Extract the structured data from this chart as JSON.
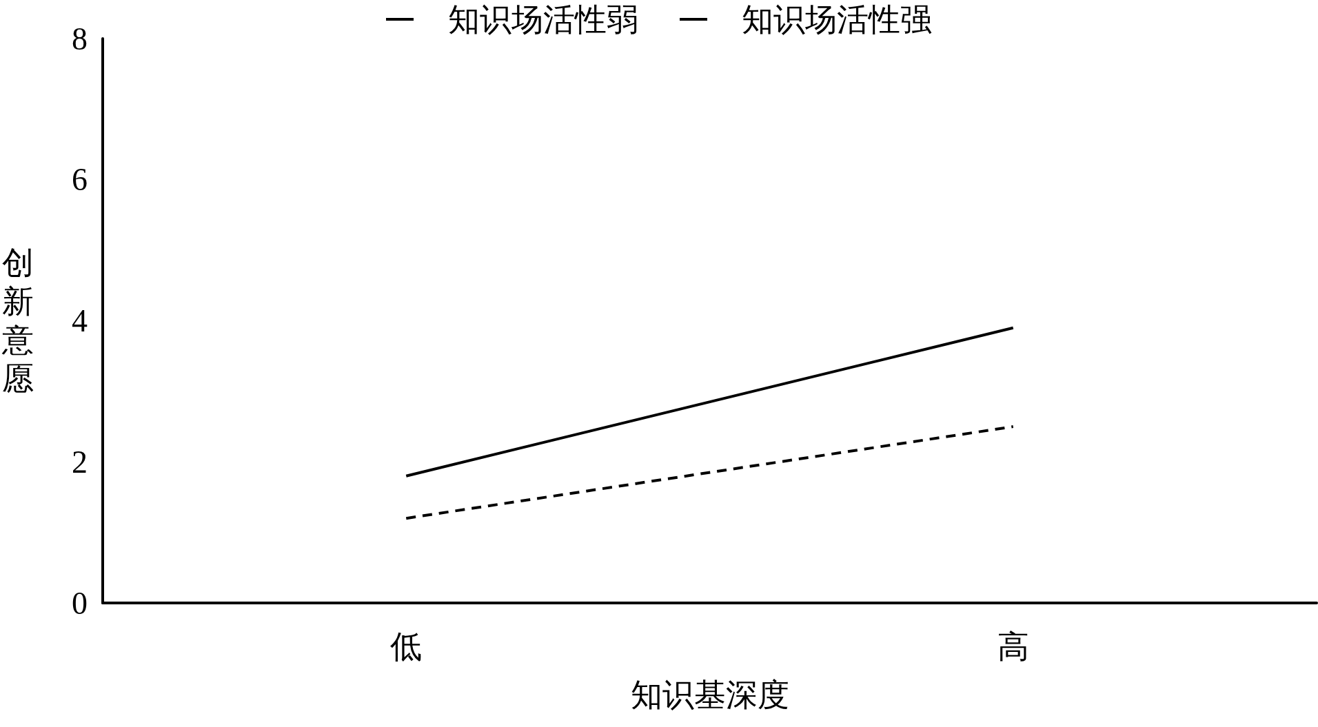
{
  "chart_data": {
    "type": "line",
    "xlabel": "知识基深度",
    "ylabel": "创新意愿",
    "categories": [
      "低",
      "高"
    ],
    "series": [
      {
        "name": "知识场活性弱",
        "color": "#000000",
        "line_style": "dashed",
        "values": [
          1.2,
          2.5
        ]
      },
      {
        "name": "知识场活性强",
        "color": "#000000",
        "line_style": "solid",
        "values": [
          1.8,
          3.9
        ]
      }
    ],
    "ylim": [
      0,
      8
    ],
    "yticks": [
      0,
      2,
      4,
      6,
      8
    ],
    "grid": false,
    "legend": "top",
    "marker": "none"
  }
}
